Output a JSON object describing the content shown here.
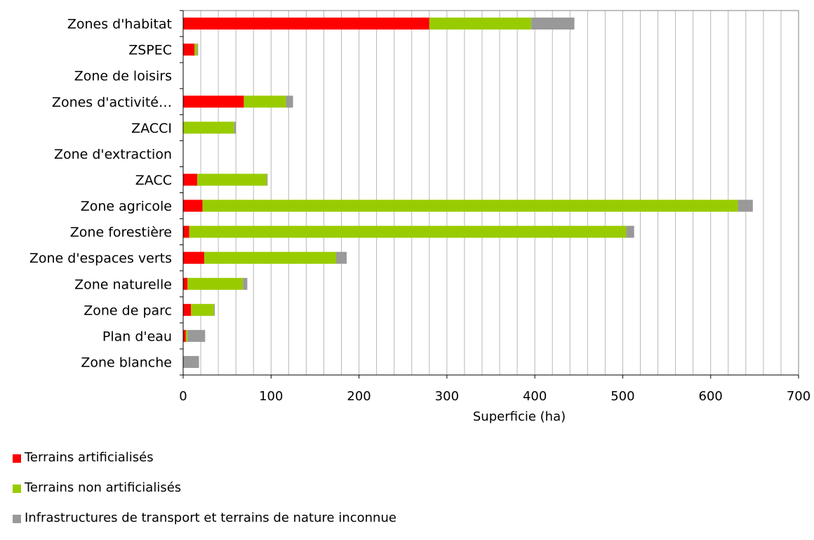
{
  "chart_data": {
    "type": "bar",
    "orientation": "horizontal",
    "stacked": true,
    "title": "",
    "xlabel": "Superficie (ha)",
    "ylabel": "",
    "xlim": [
      0,
      700
    ],
    "xticks": [
      0,
      100,
      200,
      300,
      400,
      500,
      600,
      700
    ],
    "grid": "vertical",
    "legend_position": "bottom-left",
    "categories": [
      "Zones d'habitat",
      "ZSPEC",
      "Zone de loisirs",
      "Zones d'activité…",
      "ZACCI",
      "Zone d'extraction",
      "ZACC",
      "Zone agricole",
      "Zone forestière",
      "Zone d'espaces verts",
      "Zone naturelle",
      "Zone de parc",
      "Plan d'eau",
      "Zone blanche"
    ],
    "series": [
      {
        "name": "Terrains artificialisés",
        "color": "#ff0000",
        "values": [
          280,
          13,
          0,
          69,
          0,
          0,
          16,
          22,
          7,
          24,
          5,
          9,
          3,
          0
        ]
      },
      {
        "name": "Terrains non artificialisés",
        "color": "#99cc00",
        "values": [
          116,
          3,
          0,
          48,
          58,
          0,
          79,
          609,
          497,
          150,
          63,
          26,
          2,
          0
        ]
      },
      {
        "name": "Infrastructures de transport et terrains de nature inconnue",
        "color": "#999999",
        "values": [
          49,
          1,
          0,
          8,
          2,
          0,
          1,
          17,
          9,
          12,
          5,
          1,
          20,
          18
        ]
      }
    ]
  }
}
